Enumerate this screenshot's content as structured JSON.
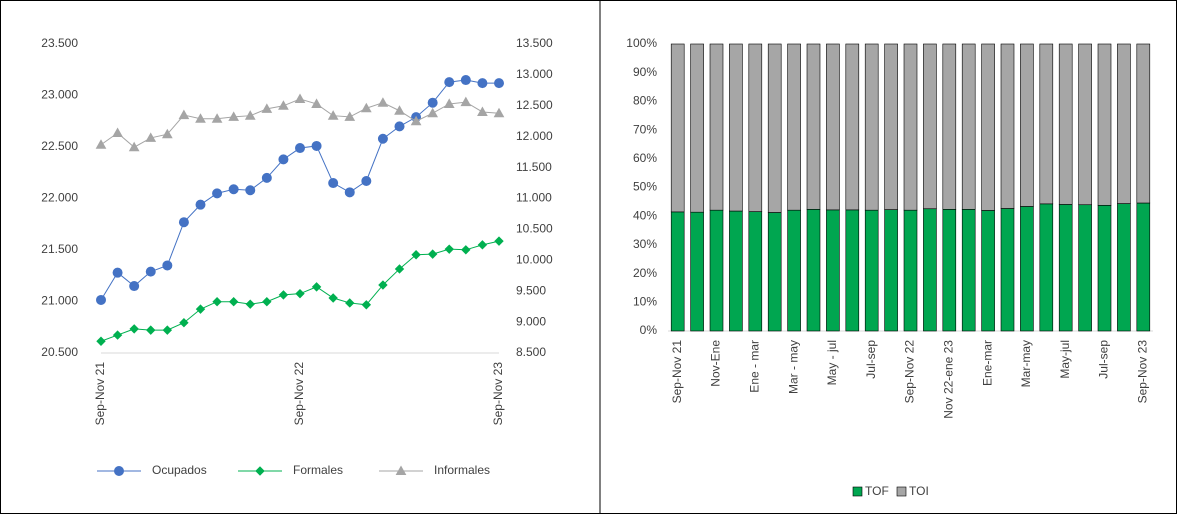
{
  "chart_data": [
    {
      "type": "line",
      "categories": [
        "Sep-Nov 21",
        null,
        null,
        null,
        null,
        null,
        null,
        null,
        null,
        null,
        null,
        null,
        "Sep-Nov 22",
        null,
        null,
        null,
        null,
        null,
        null,
        null,
        null,
        null,
        null,
        null,
        "Sep-Nov 23"
      ],
      "series": [
        {
          "name": "Ocupados",
          "color": "#4472c4",
          "marker": "circle",
          "values": [
            21015,
            21280,
            21150,
            21290,
            21350,
            21770,
            21940,
            22050,
            22090,
            22080,
            22200,
            22380,
            22490,
            22510,
            22150,
            22060,
            22170,
            22580,
            22700,
            22790,
            22930,
            23130,
            23150,
            23120,
            23120
          ]
        },
        {
          "name": "Formales",
          "color": "#00b050",
          "marker": "diamond",
          "axis": "y2",
          "values": [
            8690,
            8790,
            8890,
            8870,
            8870,
            8990,
            9210,
            9330,
            9330,
            9290,
            9330,
            9440,
            9460,
            9570,
            9390,
            9310,
            9280,
            9600,
            9860,
            10090,
            10100,
            10180,
            10170,
            10250,
            10310
          ]
        },
        {
          "name": "Informales",
          "color": "#a5a5a5",
          "marker": "triangle",
          "axis": "y2",
          "values": [
            11870,
            12060,
            11830,
            11980,
            12040,
            12350,
            12290,
            12290,
            12320,
            12340,
            12450,
            12500,
            12610,
            12530,
            12340,
            12320,
            12460,
            12550,
            12420,
            12250,
            12380,
            12530,
            12560,
            12400,
            12380
          ]
        }
      ],
      "ylim": [
        20500,
        23500
      ],
      "yticks": [
        {
          "value": 20500,
          "label": "20.500"
        },
        {
          "value": 21000,
          "label": "21.000"
        },
        {
          "value": 21500,
          "label": "21.500"
        },
        {
          "value": 22000,
          "label": "22.000"
        },
        {
          "value": 22500,
          "label": "22.500"
        },
        {
          "value": 23000,
          "label": "23.000"
        },
        {
          "value": 23500,
          "label": "23.500"
        }
      ],
      "y2lim": [
        8500,
        13500
      ],
      "y2ticks": [
        {
          "value": 8500,
          "label": "8.500"
        },
        {
          "value": 9000,
          "label": "9.000"
        },
        {
          "value": 9500,
          "label": "9.500"
        },
        {
          "value": 10000,
          "label": "10.000"
        },
        {
          "value": 10500,
          "label": "10.500"
        },
        {
          "value": 11000,
          "label": "11.000"
        },
        {
          "value": 11500,
          "label": "11.500"
        },
        {
          "value": 12000,
          "label": "12.000"
        },
        {
          "value": 12500,
          "label": "12.500"
        },
        {
          "value": 13000,
          "label": "13.000"
        },
        {
          "value": 13500,
          "label": "13.500"
        }
      ],
      "legend": "bottom"
    },
    {
      "type": "bar",
      "stacked": true,
      "categories": [
        "Sep-Nov 21",
        null,
        "Nov-Ene",
        null,
        "Ene - mar",
        null,
        "Mar - may",
        null,
        "May - jul",
        null,
        "Jul-sep",
        null,
        "Sep-Nov 22",
        null,
        "Nov 22-ene 23",
        null,
        "Ene-mar",
        null,
        "Mar-may",
        null,
        "May-jul",
        null,
        "Jul-sep",
        null,
        "Sep-Nov 23"
      ],
      "series": [
        {
          "name": "TOF",
          "color": "#00a650",
          "values": [
            41.5,
            41.4,
            42.1,
            41.8,
            41.6,
            41.3,
            42.1,
            42.4,
            42.2,
            42.2,
            42.1,
            42.3,
            42.1,
            42.6,
            42.4,
            42.4,
            42.0,
            42.7,
            43.4,
            44.3,
            44.1,
            44.0,
            43.8,
            44.4,
            44.6
          ]
        },
        {
          "name": "TOI",
          "color": "#a6a6a6",
          "values": [
            58.5,
            58.6,
            57.9,
            58.2,
            58.4,
            58.7,
            57.9,
            57.6,
            57.8,
            57.8,
            57.9,
            57.7,
            57.9,
            57.4,
            57.6,
            57.6,
            58.0,
            57.3,
            56.6,
            55.7,
            55.9,
            56.0,
            56.2,
            55.6,
            55.4
          ]
        }
      ],
      "ylim": [
        0,
        100
      ],
      "yticks": [
        {
          "value": 0,
          "label": "0%"
        },
        {
          "value": 10,
          "label": "10%"
        },
        {
          "value": 20,
          "label": "20%"
        },
        {
          "value": 30,
          "label": "30%"
        },
        {
          "value": 40,
          "label": "40%"
        },
        {
          "value": 50,
          "label": "50%"
        },
        {
          "value": 60,
          "label": "60%"
        },
        {
          "value": 70,
          "label": "70%"
        },
        {
          "value": 80,
          "label": "80%"
        },
        {
          "value": 90,
          "label": "90%"
        },
        {
          "value": 100,
          "label": "100%"
        }
      ],
      "legend": "bottom"
    }
  ]
}
